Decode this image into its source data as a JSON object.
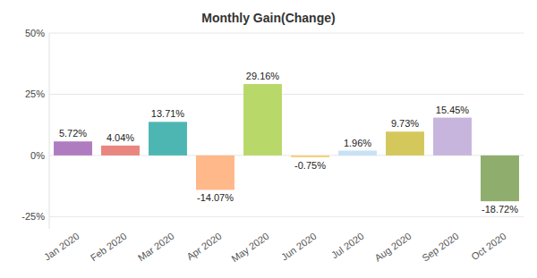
{
  "chart_data": {
    "type": "bar",
    "title": "Monthly Gain(Change)",
    "categories": [
      "Jan 2020",
      "Feb 2020",
      "Mar 2020",
      "Apr 2020",
      "May 2020",
      "Jun 2020",
      "Jul 2020",
      "Aug 2020",
      "Sep 2020",
      "Oct 2020"
    ],
    "values": [
      5.72,
      4.04,
      13.71,
      -14.07,
      29.16,
      -0.75,
      1.96,
      9.73,
      15.45,
      -18.72
    ],
    "value_labels": [
      "5.72%",
      "4.04%",
      "13.71%",
      "-14.07%",
      "29.16%",
      "-0.75%",
      "1.96%",
      "9.73%",
      "15.45%",
      "-18.72%"
    ],
    "colors": [
      "#b07cc0",
      "#e8867f",
      "#4db6b2",
      "#ffb88a",
      "#b8d96a",
      "#f2d27a",
      "#c7e2f5",
      "#d4c85c",
      "#c7b5dd",
      "#8fae6e"
    ],
    "ylim": [
      -30,
      50
    ],
    "yticks": [
      {
        "value": -25,
        "label": "-25%"
      },
      {
        "value": 0,
        "label": "0%"
      },
      {
        "value": 25,
        "label": "25%"
      },
      {
        "value": 50,
        "label": "50%"
      }
    ],
    "grid": true,
    "data_labels": true
  }
}
